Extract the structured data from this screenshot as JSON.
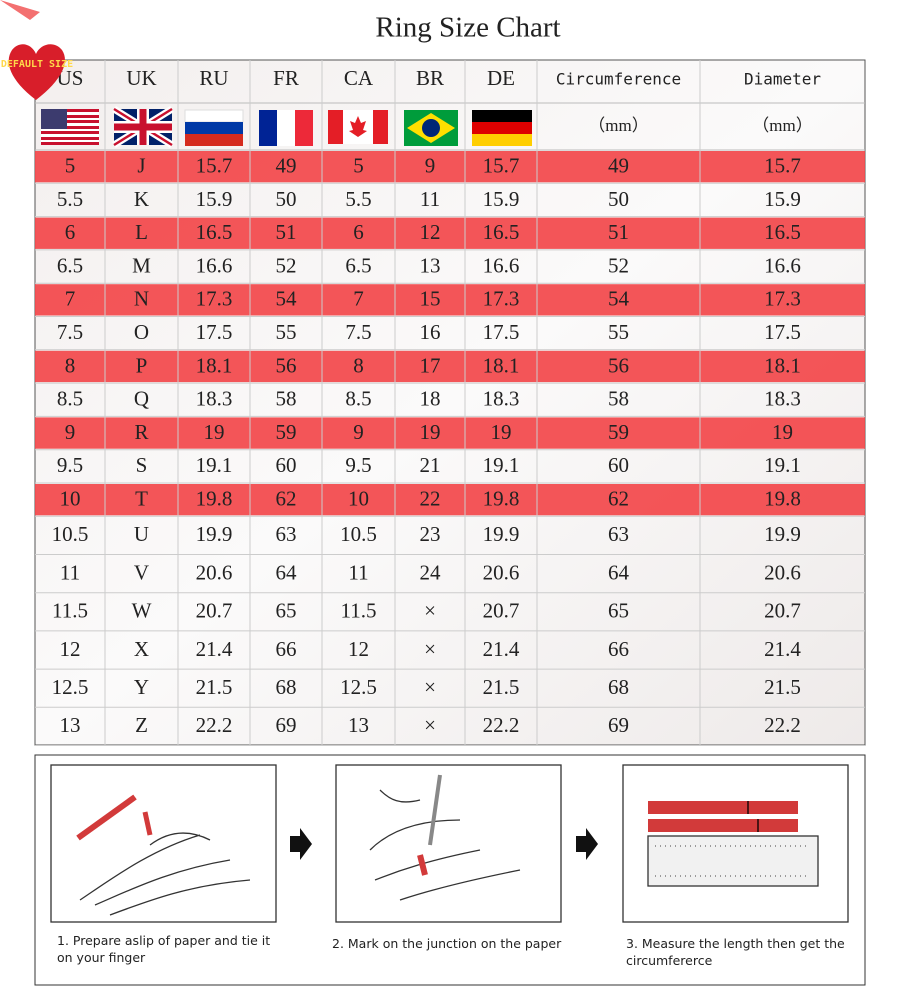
{
  "title": "Ring  Size Chart",
  "badge": "DEFAULT SIZE",
  "table": {
    "headers": [
      "US",
      "UK",
      "RU",
      "FR",
      "CA",
      "BR",
      "DE",
      "Circumference",
      "Diameter"
    ],
    "units": [
      "（mm）",
      "（mm）"
    ],
    "rows": [
      [
        "5",
        "J",
        "15.7",
        "49",
        "5",
        "9",
        "15.7",
        "49",
        "15.7"
      ],
      [
        "5.5",
        "K",
        "15.9",
        "50",
        "5.5",
        "11",
        "15.9",
        "50",
        "15.9"
      ],
      [
        "6",
        "L",
        "16.5",
        "51",
        "6",
        "12",
        "16.5",
        "51",
        "16.5"
      ],
      [
        "6.5",
        "M",
        "16.6",
        "52",
        "6.5",
        "13",
        "16.6",
        "52",
        "16.6"
      ],
      [
        "7",
        "N",
        "17.3",
        "54",
        "7",
        "15",
        "17.3",
        "54",
        "17.3"
      ],
      [
        "7.5",
        "O",
        "17.5",
        "55",
        "7.5",
        "16",
        "17.5",
        "55",
        "17.5"
      ],
      [
        "8",
        "P",
        "18.1",
        "56",
        "8",
        "17",
        "18.1",
        "56",
        "18.1"
      ],
      [
        "8.5",
        "Q",
        "18.3",
        "58",
        "8.5",
        "18",
        "18.3",
        "58",
        "18.3"
      ],
      [
        "9",
        "R",
        "19",
        "59",
        "9",
        "19",
        "19",
        "59",
        "19"
      ],
      [
        "9.5",
        "S",
        "19.1",
        "60",
        "9.5",
        "21",
        "19.1",
        "60",
        "19.1"
      ],
      [
        "10",
        "T",
        "19.8",
        "62",
        "10",
        "22",
        "19.8",
        "62",
        "19.8"
      ],
      [
        "10.5",
        "U",
        "19.9",
        "63",
        "10.5",
        "23",
        "19.9",
        "63",
        "19.9"
      ],
      [
        "11",
        "V",
        "20.6",
        "64",
        "11",
        "24",
        "20.6",
        "64",
        "20.6"
      ],
      [
        "11.5",
        "W",
        "20.7",
        "65",
        "11.5",
        "×",
        "20.7",
        "65",
        "20.7"
      ],
      [
        "12",
        "X",
        "21.4",
        "66",
        "12",
        "×",
        "21.4",
        "66",
        "21.4"
      ],
      [
        "12.5",
        "Y",
        "21.5",
        "68",
        "12.5",
        "×",
        "21.5",
        "68",
        "21.5"
      ],
      [
        "13",
        "Z",
        "22.2",
        "69",
        "13",
        "×",
        "22.2",
        "69",
        "22.2"
      ]
    ]
  },
  "steps": [
    "1. Prepare aslip of paper and tie it on your finger",
    "2. Mark on the junction on the paper",
    "3. Measure the length then get the circumfererce"
  ]
}
